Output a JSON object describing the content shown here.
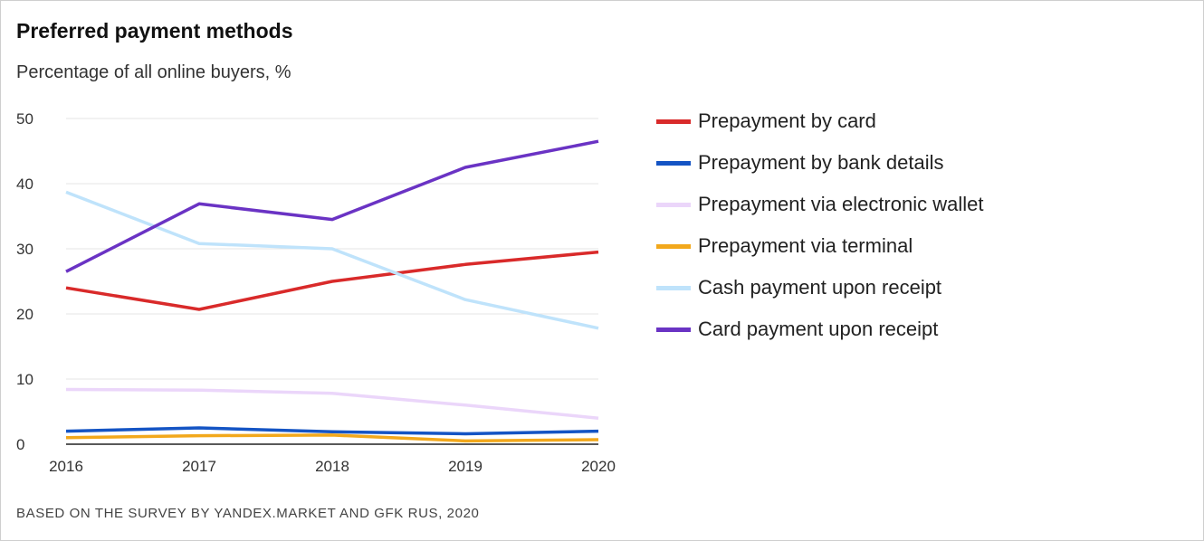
{
  "chart_data": {
    "type": "line",
    "title": "Preferred payment methods",
    "subtitle": "Percentage of all online buyers, %",
    "source": "BASED ON THE SURVEY BY YANDEX.MARKET AND GFK RUS, 2020",
    "x": [
      "2016",
      "2017",
      "2018",
      "2019",
      "2020"
    ],
    "ylim": [
      0,
      50
    ],
    "yticks": [
      "0",
      "10",
      "20",
      "30",
      "40",
      "50"
    ],
    "grid": true,
    "legend_position": "right",
    "series": [
      {
        "name": "Prepayment by card",
        "color": "#d92a2a",
        "values": [
          24.0,
          20.7,
          25.0,
          27.6,
          29.5
        ]
      },
      {
        "name": "Prepayment by bank details",
        "color": "#1454c4",
        "values": [
          2.0,
          2.5,
          1.9,
          1.6,
          2.0
        ]
      },
      {
        "name": "Prepayment via electronic wallet",
        "color": "#ebd6fa",
        "values": [
          8.4,
          8.3,
          7.8,
          6.0,
          4.0
        ]
      },
      {
        "name": "Prepayment via terminal",
        "color": "#f2a81c",
        "values": [
          1.0,
          1.3,
          1.4,
          0.5,
          0.7
        ]
      },
      {
        "name": "Cash payment upon receipt",
        "color": "#bfe3fb",
        "values": [
          38.7,
          30.8,
          30.0,
          22.2,
          17.8
        ]
      },
      {
        "name": "Card payment upon receipt",
        "color": "#6a33c4",
        "values": [
          26.5,
          36.9,
          34.5,
          42.5,
          46.5
        ]
      }
    ]
  }
}
